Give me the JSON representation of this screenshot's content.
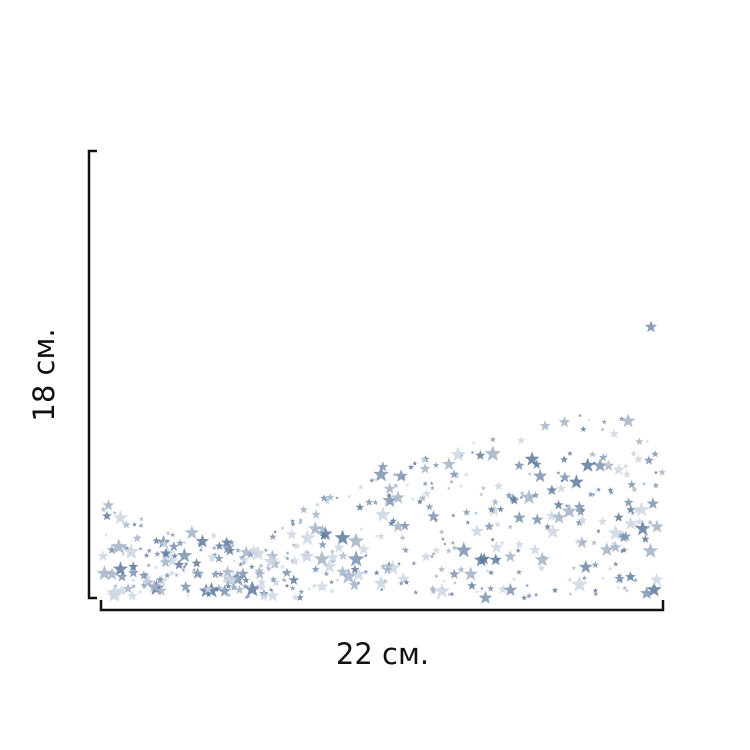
{
  "dimensions": {
    "width_label": "22 см.",
    "height_label": "18 см."
  },
  "pattern": {
    "motif": "scattered-stars",
    "colors": [
      "#5f7a9c",
      "#7d93b0",
      "#a3b3c8",
      "#cdd6e2"
    ]
  },
  "bracket_color": "#111111"
}
